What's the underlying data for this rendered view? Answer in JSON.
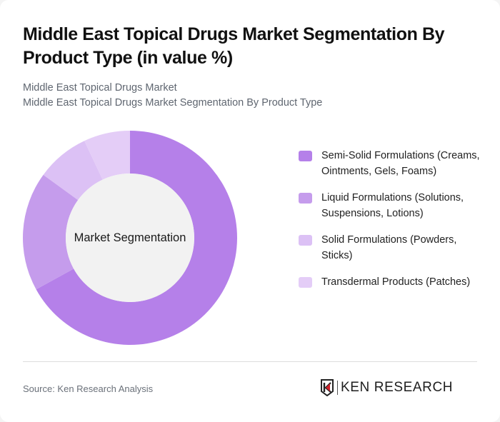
{
  "header": {
    "title": "Middle East Topical Drugs Market Segmentation By Product Type (in value %)",
    "subtitle_line1": "Middle East Topical Drugs Market",
    "subtitle_line2": "Middle East Topical Drugs Market Segmentation By Product Type"
  },
  "chart": {
    "center_label": "Market Segmentation"
  },
  "legend": [
    {
      "label": "Semi-Solid Formulations (Creams, Ointments, Gels, Foams)",
      "color": "#b580e9"
    },
    {
      "label": "Liquid Formulations (Solutions, Suspensions, Lotions)",
      "color": "#c59cec"
    },
    {
      "label": "Solid Formulations (Powders, Sticks)",
      "color": "#dcc1f5"
    },
    {
      "label": "Transdermal Products (Patches)",
      "color": "#e4cdf7"
    }
  ],
  "footer": {
    "source": "Source: Ken Research Analysis",
    "logo_text": "KEN RESEARCH"
  },
  "chart_data": {
    "type": "pie",
    "title": "Middle East Topical Drugs Market Segmentation By Product Type (in value %)",
    "subtitle": "Middle East Topical Drugs Market Segmentation By Product Type",
    "center_label": "Market Segmentation",
    "donut": true,
    "categories": [
      "Semi-Solid Formulations (Creams, Ointments, Gels, Foams)",
      "Liquid Formulations (Solutions, Suspensions, Lotions)",
      "Solid Formulations (Powders, Sticks)",
      "Transdermal Products (Patches)"
    ],
    "values": [
      67,
      18,
      8,
      7
    ],
    "colors": [
      "#b580e9",
      "#c59cec",
      "#dcc1f5",
      "#e4cdf7"
    ],
    "legend_position": "right",
    "start_angle": "top, clockwise"
  }
}
